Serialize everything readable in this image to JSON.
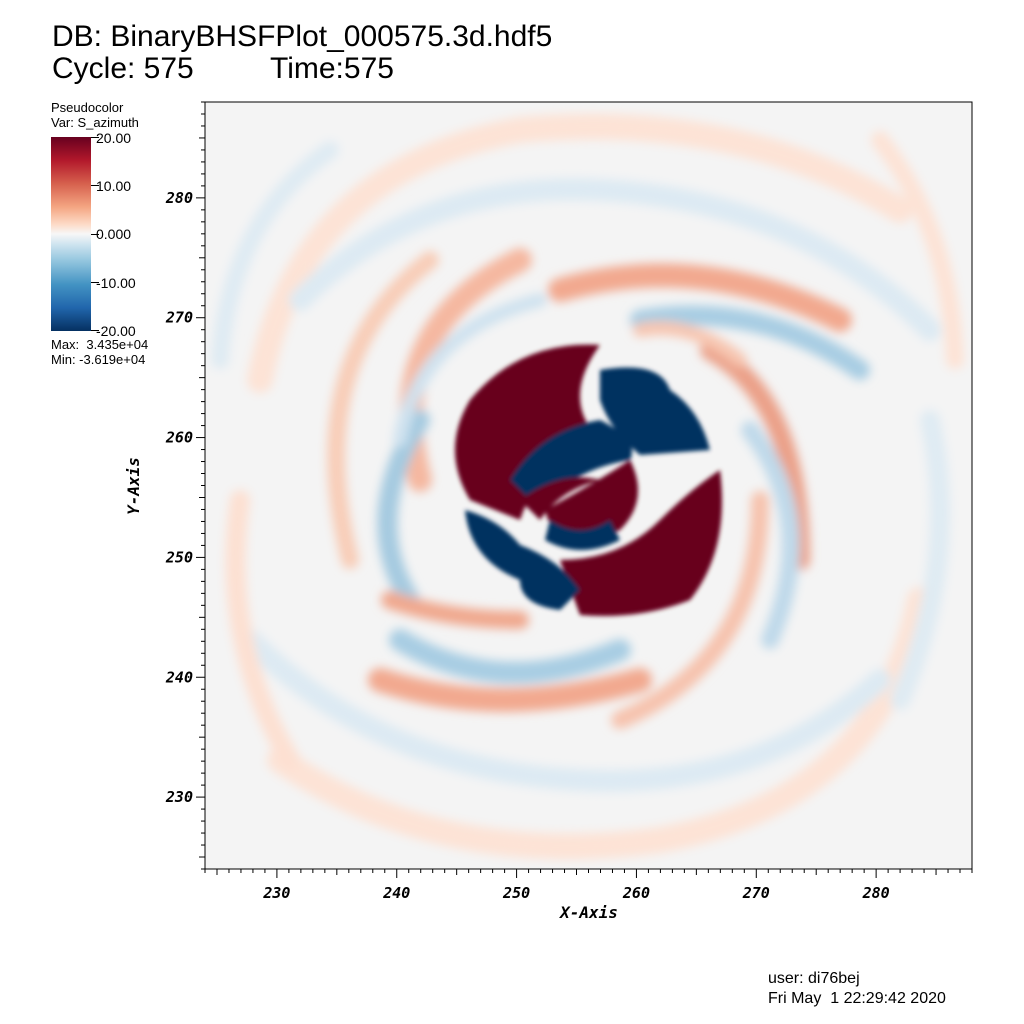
{
  "header": {
    "db": "DB: BinaryBHSFPlot_000575.3d.hdf5",
    "cycle": "Cycle: 575",
    "time": "Time:575"
  },
  "legend": {
    "plot_type": "Pseudocolor",
    "variable": "Var: S_azimuth",
    "colorbar_labels": [
      "20.00",
      "10.00",
      "0.000",
      "-10.00",
      "-20.00"
    ],
    "max": "Max:  3.435e+04",
    "min": "Min: -3.619e+04",
    "colormap": [
      "#67001f",
      "#b2182b",
      "#d6604d",
      "#f4a582",
      "#fddbc7",
      "#f7f7f7",
      "#d1e5f0",
      "#92c5de",
      "#4393c3",
      "#2166ac",
      "#053061"
    ]
  },
  "chart_data": {
    "type": "heatmap",
    "variable": "S_azimuth",
    "xlabel": "X-Axis",
    "ylabel": "Y-Axis",
    "xlim": [
      224,
      288
    ],
    "ylim": [
      224,
      288
    ],
    "xticks": [
      230,
      240,
      250,
      260,
      270,
      280
    ],
    "yticks": [
      230,
      240,
      250,
      260,
      270,
      280
    ],
    "color_range": [
      -20,
      20
    ],
    "data_max": 34350,
    "data_min": -36190,
    "center": [
      256,
      256
    ]
  },
  "footer": {
    "user": "user: di76bej",
    "date": "Fri May  1 22:29:42 2020"
  }
}
